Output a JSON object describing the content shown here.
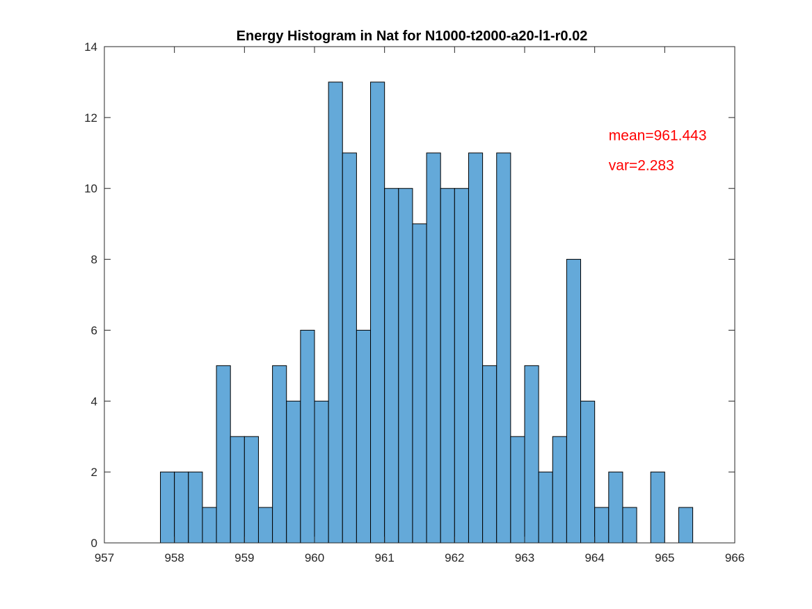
{
  "chart_data": {
    "type": "bar",
    "title": "Energy Histogram in Nat for N1000-t2000-a20-l1-r0.02",
    "xlabel": "",
    "ylabel": "",
    "xlim": [
      957,
      966
    ],
    "ylim": [
      0,
      14
    ],
    "xticks": [
      957,
      958,
      959,
      960,
      961,
      962,
      963,
      964,
      965,
      966
    ],
    "yticks": [
      0,
      2,
      4,
      6,
      8,
      10,
      12,
      14
    ],
    "bin_start": 957.8,
    "bin_width": 0.2,
    "counts": [
      2,
      2,
      2,
      1,
      5,
      3,
      3,
      1,
      5,
      4,
      6,
      4,
      13,
      11,
      6,
      13,
      10,
      10,
      9,
      11,
      10,
      10,
      11,
      5,
      11,
      3,
      5,
      2,
      3,
      8,
      4,
      1,
      2,
      1,
      0,
      2,
      0,
      1
    ],
    "bar_color": "#64a9d9",
    "annotations": [
      {
        "text": "mean=961.443",
        "x": 964.2,
        "y": 11.5,
        "color": "#ff0000"
      },
      {
        "text": "var=2.283",
        "x": 964.2,
        "y": 10.65,
        "color": "#ff0000"
      }
    ]
  }
}
